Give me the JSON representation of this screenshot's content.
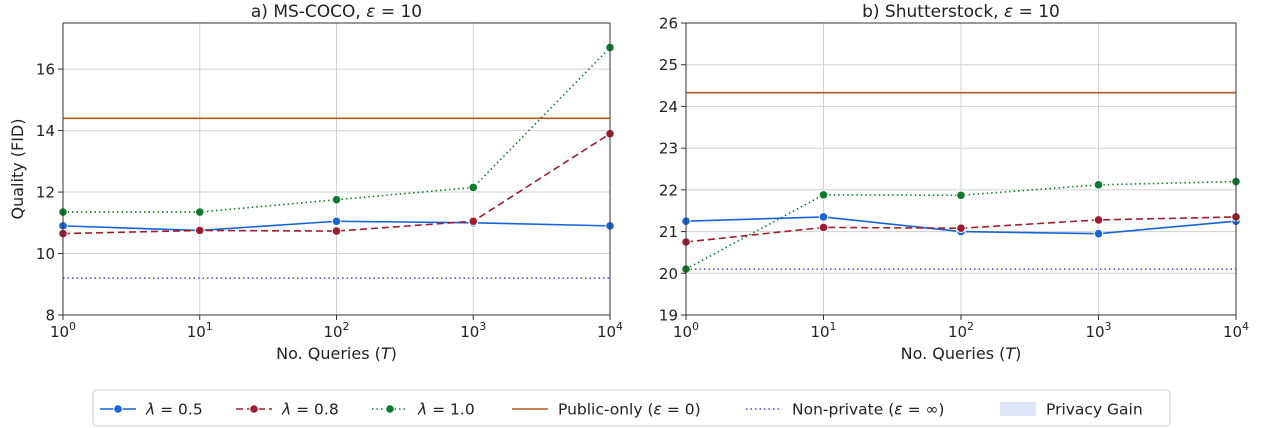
{
  "chart_data": [
    {
      "type": "line",
      "title": "a) MS-COCO, ε = 10",
      "xlabel": "No. Queries (T)",
      "ylabel": "Quality (FID)",
      "xscale": "log",
      "xlim": [
        1,
        10000
      ],
      "ylim": [
        8,
        17.5
      ],
      "grid": true,
      "x": [
        1,
        10,
        100,
        1000,
        10000
      ],
      "x_tick_labels": [
        "10^0",
        "10^1",
        "10^2",
        "10^3",
        "10^4"
      ],
      "y_ticks": [
        8,
        10,
        12,
        14,
        16
      ],
      "series": [
        {
          "name": "λ = 0.5",
          "values": [
            10.9,
            10.75,
            11.05,
            11.0,
            10.9
          ],
          "color": "#1565d8",
          "style": "solid"
        },
        {
          "name": "λ = 0.8",
          "values": [
            10.65,
            10.75,
            10.73,
            11.05,
            13.9
          ],
          "color": "#a01d2f",
          "style": "dashed"
        },
        {
          "name": "λ = 1.0",
          "values": [
            11.35,
            11.35,
            11.75,
            12.15,
            16.7
          ],
          "color": "#0f7a2b",
          "style": "dotted"
        }
      ],
      "references": [
        {
          "name": "Public-only (ε = 0)",
          "value": 14.4,
          "color": "#b15a1b",
          "style": "solid"
        },
        {
          "name": "Non-private (ε = ∞)",
          "value": 9.2,
          "color": "#4f43c7",
          "style": "dotted"
        }
      ]
    },
    {
      "type": "line",
      "title": "b) Shutterstock, ε = 10",
      "xlabel": "No. Queries (T)",
      "ylabel": "",
      "xscale": "log",
      "xlim": [
        1,
        10000
      ],
      "ylim": [
        19,
        26
      ],
      "grid": true,
      "x": [
        1,
        10,
        100,
        1000,
        10000
      ],
      "x_tick_labels": [
        "10^0",
        "10^1",
        "10^2",
        "10^3",
        "10^4"
      ],
      "y_ticks": [
        19,
        20,
        21,
        22,
        23,
        24,
        25,
        26
      ],
      "series": [
        {
          "name": "λ = 0.5",
          "values": [
            21.25,
            21.35,
            21.0,
            20.95,
            21.25
          ],
          "color": "#1565d8",
          "style": "solid"
        },
        {
          "name": "λ = 0.8",
          "values": [
            20.75,
            21.1,
            21.08,
            21.28,
            21.35
          ],
          "color": "#a01d2f",
          "style": "dashed"
        },
        {
          "name": "λ = 1.0",
          "values": [
            20.1,
            21.88,
            21.87,
            22.12,
            22.2
          ],
          "color": "#0f7a2b",
          "style": "dotted"
        }
      ],
      "references": [
        {
          "name": "Public-only (ε = 0)",
          "value": 24.33,
          "color": "#b15a1b",
          "style": "solid"
        },
        {
          "name": "Non-private (ε = ∞)",
          "value": 20.1,
          "color": "#4f43c7",
          "style": "dotted"
        }
      ]
    }
  ],
  "legend": {
    "placement": "bottom",
    "entries": [
      {
        "label": "λ =  0.5",
        "color": "#1565d8",
        "style": "solid",
        "marker": true
      },
      {
        "label": "λ =  0.8",
        "color": "#a01d2f",
        "style": "dashed",
        "marker": true
      },
      {
        "label": "λ =  1.0",
        "color": "#0f7a2b",
        "style": "dotted",
        "marker": true
      },
      {
        "label": "Public-only (ε = 0)",
        "color": "#b15a1b",
        "style": "solid",
        "marker": false
      },
      {
        "label": "Non-private (ε = ∞)",
        "color": "#4f43c7",
        "style": "dotted",
        "marker": false
      },
      {
        "label": "Privacy Gain",
        "color": "#dde6f7",
        "style": "patch",
        "marker": false
      }
    ]
  }
}
